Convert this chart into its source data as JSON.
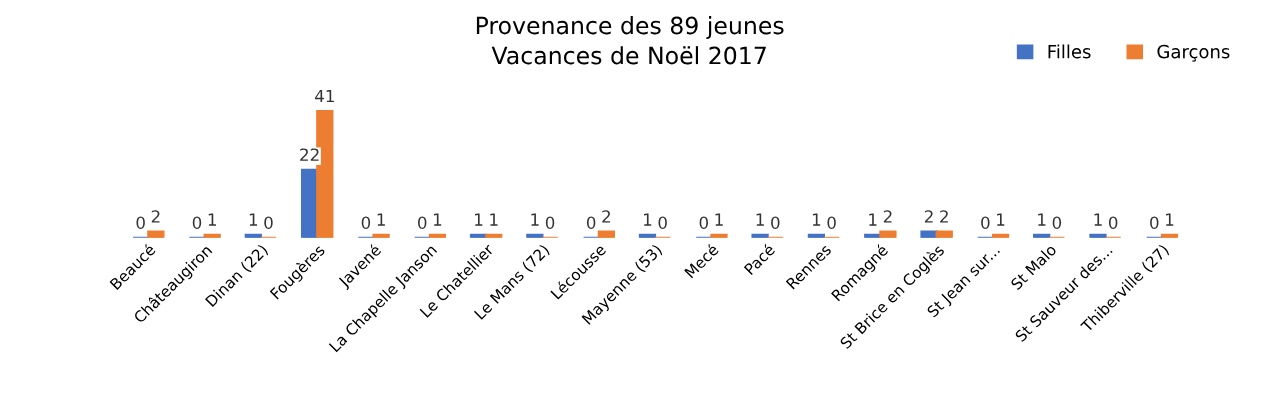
{
  "chart_data": {
    "type": "bar",
    "title": "Provenance des 89 jeunes\nVacances de Noël 2017",
    "categories": [
      "Beaucé",
      "Châteaugiron",
      "Dinan (22)",
      "Fougères",
      "Javené",
      "La Chapelle Janson",
      "Le Chatellier",
      "Le Mans (72)",
      "Lécousse",
      "Mayenne (53)",
      "Mecé",
      "Pacé",
      "Rennes",
      "Romagné",
      "St Brice en Coglès",
      "St Jean sur...",
      "St Malo",
      "St Sauveur des...",
      "Thiberville (27)"
    ],
    "series": [
      {
        "name": "Filles",
        "color": "#4472c4",
        "values": [
          0,
          0,
          1,
          22,
          0,
          0,
          1,
          1,
          0,
          1,
          0,
          1,
          1,
          1,
          2,
          0,
          1,
          1,
          0
        ]
      },
      {
        "name": "Garçons",
        "color": "#ed7d31",
        "values": [
          2,
          1,
          0,
          41,
          1,
          1,
          1,
          0,
          2,
          0,
          1,
          0,
          0,
          2,
          2,
          1,
          0,
          0,
          1
        ]
      }
    ],
    "data_labels": true,
    "legend": "top right",
    "grid": false
  }
}
